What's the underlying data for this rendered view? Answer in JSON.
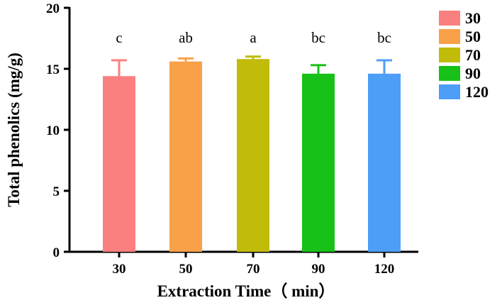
{
  "chart_data": {
    "type": "bar",
    "title": "",
    "xlabel": "Extraction Time（ min）",
    "ylabel": "Total phenolics (mg/g)",
    "categories": [
      "30",
      "50",
      "70",
      "90",
      "120"
    ],
    "values": [
      14.4,
      15.6,
      15.8,
      14.6,
      14.6
    ],
    "errors": [
      1.3,
      0.25,
      0.2,
      0.7,
      1.1
    ],
    "significance": [
      "c",
      "ab",
      "a",
      "bc",
      "bc"
    ],
    "colors": [
      "#fa7f7f",
      "#f9a149",
      "#c1bb0a",
      "#17c117",
      "#4d9ef7"
    ],
    "ylim": [
      0,
      20
    ],
    "yticks": [
      0,
      5,
      10,
      15,
      20
    ],
    "grid": false,
    "legend": {
      "position": "top-right",
      "entries": [
        "30",
        "50",
        "70",
        "90",
        "120"
      ]
    }
  }
}
